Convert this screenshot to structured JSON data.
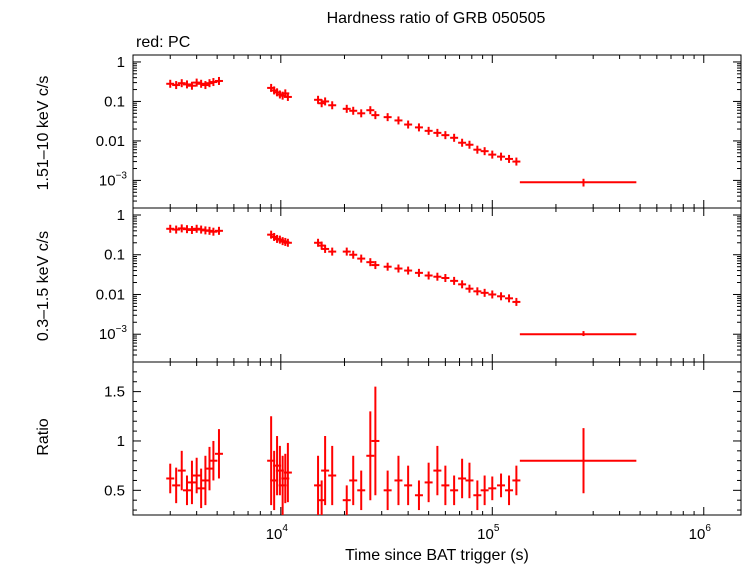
{
  "title": "Hardness ratio of GRB 050505",
  "legend_label": "red: PC",
  "colors": {
    "series": "#ff0000",
    "axes": "#000000",
    "background": "#ffffff"
  },
  "chart_data": [
    {
      "type": "scatter",
      "panel": "top",
      "ylabel": "1.51–10 keV c/s",
      "xscale": "log",
      "yscale": "log",
      "xlim": [
        2000,
        1500000
      ],
      "ylim": [
        0.0002,
        1.5
      ],
      "yticks": [
        {
          "v": 1,
          "label": "1"
        },
        {
          "v": 0.1,
          "label": "0.1"
        },
        {
          "v": 0.01,
          "label": "0.01"
        },
        {
          "v": 0.001,
          "label": "10−3"
        }
      ],
      "series": [
        {
          "points": [
            [
              3000,
              0.28
            ],
            [
              3200,
              0.26
            ],
            [
              3400,
              0.29
            ],
            [
              3600,
              0.27
            ],
            [
              3800,
              0.25
            ],
            [
              4000,
              0.3
            ],
            [
              4200,
              0.28
            ],
            [
              4400,
              0.26
            ],
            [
              4600,
              0.29
            ],
            [
              4800,
              0.31
            ],
            [
              5100,
              0.33
            ],
            [
              9000,
              0.22
            ],
            [
              9300,
              0.19
            ],
            [
              9600,
              0.17
            ],
            [
              9900,
              0.15
            ],
            [
              10200,
              0.14
            ],
            [
              10500,
              0.16
            ],
            [
              10800,
              0.13
            ],
            [
              15000,
              0.11
            ],
            [
              15600,
              0.09
            ],
            [
              16200,
              0.1
            ],
            [
              17500,
              0.08
            ],
            [
              20500,
              0.065
            ],
            [
              22000,
              0.058
            ],
            [
              24000,
              0.05
            ],
            [
              26500,
              0.06
            ],
            [
              28000,
              0.045
            ],
            [
              32000,
              0.04
            ],
            [
              36000,
              0.033
            ],
            [
              40000,
              0.026
            ],
            [
              45000,
              0.022
            ],
            [
              50000,
              0.018
            ],
            [
              55000,
              0.016
            ],
            [
              60000,
              0.014
            ],
            [
              66000,
              0.012
            ],
            [
              72000,
              0.009
            ],
            [
              78000,
              0.008
            ],
            [
              85000,
              0.006
            ],
            [
              92000,
              0.0055
            ],
            [
              100000,
              0.0045
            ],
            [
              110000,
              0.004
            ],
            [
              120000,
              0.0035
            ],
            [
              130000,
              0.003
            ]
          ],
          "segment": {
            "x": 270000,
            "y": 0.0009,
            "xerr": [
              135000,
              480000
            ],
            "yerr": [
              0.0007,
              0.0011
            ]
          }
        }
      ]
    },
    {
      "type": "scatter",
      "panel": "middle",
      "ylabel": "0.3–1.5 keV c/s",
      "xscale": "log",
      "yscale": "log",
      "xlim": [
        2000,
        1500000
      ],
      "ylim": [
        0.0002,
        1.5
      ],
      "yticks": [
        {
          "v": 1,
          "label": "1"
        },
        {
          "v": 0.1,
          "label": "0.1"
        },
        {
          "v": 0.01,
          "label": "0.01"
        },
        {
          "v": 0.001,
          "label": "10−3"
        }
      ],
      "series": [
        {
          "points": [
            [
              3000,
              0.45
            ],
            [
              3200,
              0.43
            ],
            [
              3400,
              0.46
            ],
            [
              3600,
              0.44
            ],
            [
              3800,
              0.42
            ],
            [
              4000,
              0.45
            ],
            [
              4200,
              0.43
            ],
            [
              4400,
              0.41
            ],
            [
              4600,
              0.4
            ],
            [
              4800,
              0.38
            ],
            [
              5100,
              0.4
            ],
            [
              9000,
              0.32
            ],
            [
              9300,
              0.28
            ],
            [
              9600,
              0.25
            ],
            [
              9900,
              0.24
            ],
            [
              10200,
              0.22
            ],
            [
              10500,
              0.21
            ],
            [
              10800,
              0.2
            ],
            [
              15000,
              0.2
            ],
            [
              15600,
              0.17
            ],
            [
              16200,
              0.14
            ],
            [
              17500,
              0.12
            ],
            [
              20500,
              0.12
            ],
            [
              22000,
              0.1
            ],
            [
              24000,
              0.08
            ],
            [
              26500,
              0.065
            ],
            [
              28000,
              0.055
            ],
            [
              32000,
              0.05
            ],
            [
              36000,
              0.045
            ],
            [
              40000,
              0.04
            ],
            [
              45000,
              0.035
            ],
            [
              50000,
              0.03
            ],
            [
              55000,
              0.028
            ],
            [
              60000,
              0.026
            ],
            [
              66000,
              0.022
            ],
            [
              72000,
              0.018
            ],
            [
              78000,
              0.014
            ],
            [
              85000,
              0.012
            ],
            [
              92000,
              0.011
            ],
            [
              100000,
              0.01
            ],
            [
              110000,
              0.009
            ],
            [
              120000,
              0.008
            ],
            [
              130000,
              0.0065
            ]
          ],
          "segment": {
            "x": 270000,
            "y": 0.001,
            "xerr": [
              135000,
              480000
            ],
            "yerr": [
              0.0009,
              0.0012
            ]
          }
        }
      ]
    },
    {
      "type": "scatter",
      "panel": "bottom",
      "ylabel": "Ratio",
      "xlabel": "Time since BAT trigger (s)",
      "xscale": "log",
      "yscale": "linear",
      "xlim": [
        2000,
        1500000
      ],
      "ylim": [
        0.25,
        1.8
      ],
      "yticks": [
        {
          "v": 1.5,
          "label": "1.5"
        },
        {
          "v": 1,
          "label": "1"
        },
        {
          "v": 0.5,
          "label": "0.5"
        }
      ],
      "xticks": [
        {
          "v": 10000,
          "base": "10",
          "exp": "4"
        },
        {
          "v": 100000,
          "base": "10",
          "exp": "5"
        },
        {
          "v": 1000000,
          "base": "10",
          "exp": "6"
        }
      ],
      "series": [
        {
          "points": [
            [
              3000,
              0.62,
              0.15
            ],
            [
              3200,
              0.55,
              0.18
            ],
            [
              3400,
              0.7,
              0.2
            ],
            [
              3600,
              0.5,
              0.15
            ],
            [
              3800,
              0.58,
              0.22
            ],
            [
              4000,
              0.65,
              0.18
            ],
            [
              4200,
              0.52,
              0.2
            ],
            [
              4400,
              0.6,
              0.25
            ],
            [
              4600,
              0.72,
              0.22
            ],
            [
              4800,
              0.8,
              0.2
            ],
            [
              5100,
              0.87,
              0.25
            ],
            [
              9000,
              0.8,
              0.45
            ],
            [
              9300,
              0.6,
              0.3
            ],
            [
              9600,
              0.75,
              0.3
            ],
            [
              9900,
              0.7,
              0.25
            ],
            [
              10200,
              0.55,
              0.3
            ],
            [
              10500,
              0.62,
              0.25
            ],
            [
              10800,
              0.68,
              0.3
            ],
            [
              15000,
              0.55,
              0.3
            ],
            [
              15600,
              0.4,
              0.2
            ],
            [
              16200,
              0.7,
              0.35
            ],
            [
              17500,
              0.65,
              0.3
            ],
            [
              20500,
              0.4,
              0.15
            ],
            [
              22000,
              0.6,
              0.25
            ],
            [
              24000,
              0.5,
              0.2
            ],
            [
              26500,
              0.85,
              0.45
            ],
            [
              28000,
              1.0,
              0.55
            ],
            [
              32000,
              0.5,
              0.2
            ],
            [
              36000,
              0.6,
              0.25
            ],
            [
              40000,
              0.55,
              0.2
            ],
            [
              45000,
              0.45,
              0.15
            ],
            [
              50000,
              0.58,
              0.2
            ],
            [
              55000,
              0.7,
              0.25
            ],
            [
              60000,
              0.55,
              0.2
            ],
            [
              66000,
              0.5,
              0.15
            ],
            [
              72000,
              0.62,
              0.2
            ],
            [
              78000,
              0.6,
              0.18
            ],
            [
              85000,
              0.45,
              0.15
            ],
            [
              92000,
              0.5,
              0.15
            ],
            [
              100000,
              0.52,
              0.12
            ],
            [
              110000,
              0.55,
              0.12
            ],
            [
              120000,
              0.5,
              0.15
            ],
            [
              130000,
              0.6,
              0.15
            ]
          ],
          "segment": {
            "x": 270000,
            "y": 0.8,
            "xerr": [
              135000,
              480000
            ],
            "yerr": [
              0.47,
              1.13
            ]
          }
        }
      ]
    }
  ]
}
